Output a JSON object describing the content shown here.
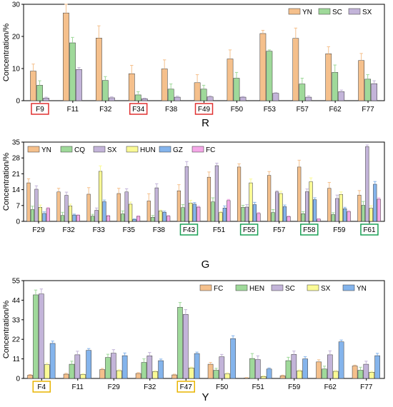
{
  "chart_data": [
    {
      "type": "bar",
      "panel_label": "R",
      "ylabel": "Concentration/%",
      "xlabel": "",
      "ylim": [
        0,
        30
      ],
      "yticks": [
        0,
        10,
        20,
        30
      ],
      "legend_position": "top-right",
      "categories": [
        "F9",
        "F11",
        "F32",
        "F34",
        "F38",
        "F49",
        "F50",
        "F53",
        "F57",
        "F62",
        "F77"
      ],
      "highlighted_categories": [
        "F9",
        "F34",
        "F49"
      ],
      "highlight_color": "#e03030",
      "series": [
        {
          "name": "YN",
          "color": "#f5c08c",
          "values": [
            9.2,
            27.3,
            19.5,
            8.4,
            9.9,
            5.6,
            13.0,
            20.9,
            19.4,
            14.6,
            12.5
          ],
          "errors": [
            2.2,
            3.2,
            3.8,
            2.6,
            2.8,
            2.5,
            2.8,
            1.0,
            3.2,
            2.2,
            2.2
          ]
        },
        {
          "name": "SC",
          "color": "#9fd99a",
          "values": [
            4.8,
            18.0,
            6.3,
            1.8,
            3.6,
            3.6,
            7.0,
            15.4,
            5.2,
            8.8,
            6.7
          ],
          "errors": [
            1.4,
            1.7,
            1.2,
            1.0,
            1.6,
            1.2,
            1.8,
            0.4,
            1.8,
            2.3,
            1.4
          ]
        },
        {
          "name": "SX",
          "color": "#c3b4d9",
          "values": [
            0.8,
            9.7,
            0.9,
            0.6,
            1.1,
            1.2,
            1.1,
            2.3,
            1.1,
            2.8,
            5.3
          ],
          "errors": [
            0.3,
            0.6,
            0.3,
            0.2,
            0.3,
            0.3,
            0.2,
            0.2,
            0.4,
            0.5,
            0.9
          ]
        }
      ]
    },
    {
      "type": "bar",
      "panel_label": "G",
      "ylabel": "Concentration/%",
      "xlabel": "",
      "ylim": [
        0,
        35
      ],
      "yticks": [
        0,
        7,
        14,
        21,
        28,
        35
      ],
      "legend_position": "top-left",
      "categories": [
        "F29",
        "F32",
        "F33",
        "F35",
        "F38",
        "F43",
        "F51",
        "F55",
        "F57",
        "F58",
        "F59",
        "F61"
      ],
      "highlighted_categories": [
        "F43",
        "F55",
        "F58",
        "F61"
      ],
      "highlight_color": "#1aa055",
      "series": [
        {
          "name": "YN",
          "color": "#f5c08c",
          "values": [
            17.0,
            13.0,
            12.0,
            12.3,
            9.0,
            13.5,
            19.5,
            24.0,
            20.3,
            24.0,
            14.6,
            11.6
          ],
          "errors": [
            1.8,
            1.6,
            2.9,
            2.3,
            3.2,
            2.7,
            2.3,
            1.4,
            1.7,
            3.0,
            2.6,
            2.0
          ]
        },
        {
          "name": "CQ",
          "color": "#9fd99a",
          "values": [
            5.2,
            2.6,
            2.3,
            3.3,
            1.8,
            6.1,
            8.6,
            6.2,
            3.9,
            3.4,
            3.0,
            7.1
          ],
          "errors": [
            1.5,
            1.4,
            0.8,
            1.3,
            0.8,
            1.3,
            1.8,
            0.9,
            1.3,
            0.9,
            0.8,
            1.7
          ]
        },
        {
          "name": "SX",
          "color": "#c3b4d9",
          "values": [
            14.2,
            11.5,
            4.9,
            13.0,
            14.8,
            24.2,
            24.6,
            6.3,
            13.0,
            13.1,
            10.1,
            33.0
          ],
          "errors": [
            1.5,
            1.4,
            1.0,
            1.4,
            1.8,
            2.2,
            1.1,
            1.1,
            0.5,
            1.2,
            1.5,
            0.7
          ]
        },
        {
          "name": "HUN",
          "color": "#fafa96",
          "values": [
            6.2,
            6.8,
            22.1,
            7.6,
            4.6,
            8.1,
            3.9,
            17.0,
            12.3,
            17.5,
            11.9,
            5.8
          ],
          "errors": [
            1.0,
            0.8,
            2.4,
            0.9,
            0.4,
            1.2,
            0.4,
            1.7,
            1.0,
            1.7,
            1.1,
            1.1
          ]
        },
        {
          "name": "GZ",
          "color": "#84b4ec",
          "values": [
            3.5,
            2.8,
            8.7,
            0.9,
            4.0,
            7.6,
            5.9,
            7.4,
            6.5,
            9.6,
            5.6,
            16.4
          ],
          "errors": [
            0.7,
            0.4,
            0.7,
            0.2,
            0.5,
            0.7,
            0.9,
            1.0,
            0.7,
            0.8,
            0.6,
            1.2
          ]
        },
        {
          "name": "FC",
          "color": "#f5a8e8",
          "values": [
            5.7,
            2.6,
            2.4,
            2.2,
            2.3,
            6.3,
            9.2,
            3.5,
            2.1,
            1.0,
            4.3,
            9.8
          ],
          "errors": [
            0.4,
            0.3,
            0.3,
            0.3,
            0.3,
            0.4,
            0.5,
            0.4,
            0.3,
            0.2,
            0.5,
            0.6
          ]
        }
      ]
    },
    {
      "type": "bar",
      "panel_label": "Y",
      "ylabel": "Concentration/%",
      "xlabel": "",
      "ylim": [
        0,
        55
      ],
      "yticks": [
        0,
        11,
        22,
        33,
        44,
        55
      ],
      "legend_position": "top-right",
      "categories": [
        "F4",
        "F11",
        "F29",
        "F32",
        "F47",
        "F50",
        "F51",
        "F59",
        "F62",
        "F77"
      ],
      "highlighted_categories": [
        "F4",
        "F47"
      ],
      "highlight_color": "#e8b400",
      "series": [
        {
          "name": "FC",
          "color": "#f5c08c",
          "values": [
            1.8,
            2.4,
            5.0,
            2.8,
            2.0,
            8.0,
            0.3,
            1.5,
            9.3,
            7.0
          ],
          "errors": [
            0.4,
            0.5,
            0.6,
            0.5,
            0.4,
            1.0,
            0.2,
            0.4,
            1.2,
            0.5
          ]
        },
        {
          "name": "HEN",
          "color": "#9fd99a",
          "values": [
            47.0,
            8.0,
            11.8,
            9.0,
            40.0,
            4.6,
            11.2,
            10.0,
            5.3,
            4.6
          ],
          "errors": [
            2.7,
            1.7,
            1.8,
            2.0,
            2.7,
            1.1,
            2.8,
            1.9,
            1.6,
            1.7
          ]
        },
        {
          "name": "SC",
          "color": "#c3b4d9",
          "values": [
            47.5,
            13.3,
            14.2,
            12.7,
            36.0,
            12.2,
            10.6,
            13.5,
            13.3,
            8.0
          ],
          "errors": [
            2.8,
            2.0,
            2.0,
            1.9,
            2.7,
            1.3,
            2.1,
            1.9,
            2.2,
            1.7
          ]
        },
        {
          "name": "SX",
          "color": "#fafa96",
          "values": [
            7.8,
            2.2,
            4.4,
            3.9,
            5.9,
            2.6,
            1.1,
            4.3,
            4.0,
            3.5
          ],
          "errors": [
            0.8,
            0.5,
            0.5,
            0.5,
            0.5,
            0.6,
            0.4,
            0.5,
            0.5,
            0.6
          ]
        },
        {
          "name": "YN",
          "color": "#84b4ec",
          "values": [
            19.7,
            15.8,
            12.8,
            10.0,
            14.0,
            22.4,
            5.3,
            11.0,
            20.6,
            12.8
          ],
          "errors": [
            1.3,
            1.0,
            1.5,
            0.9,
            0.8,
            1.6,
            0.6,
            1.2,
            1.0,
            1.3
          ]
        }
      ]
    }
  ]
}
